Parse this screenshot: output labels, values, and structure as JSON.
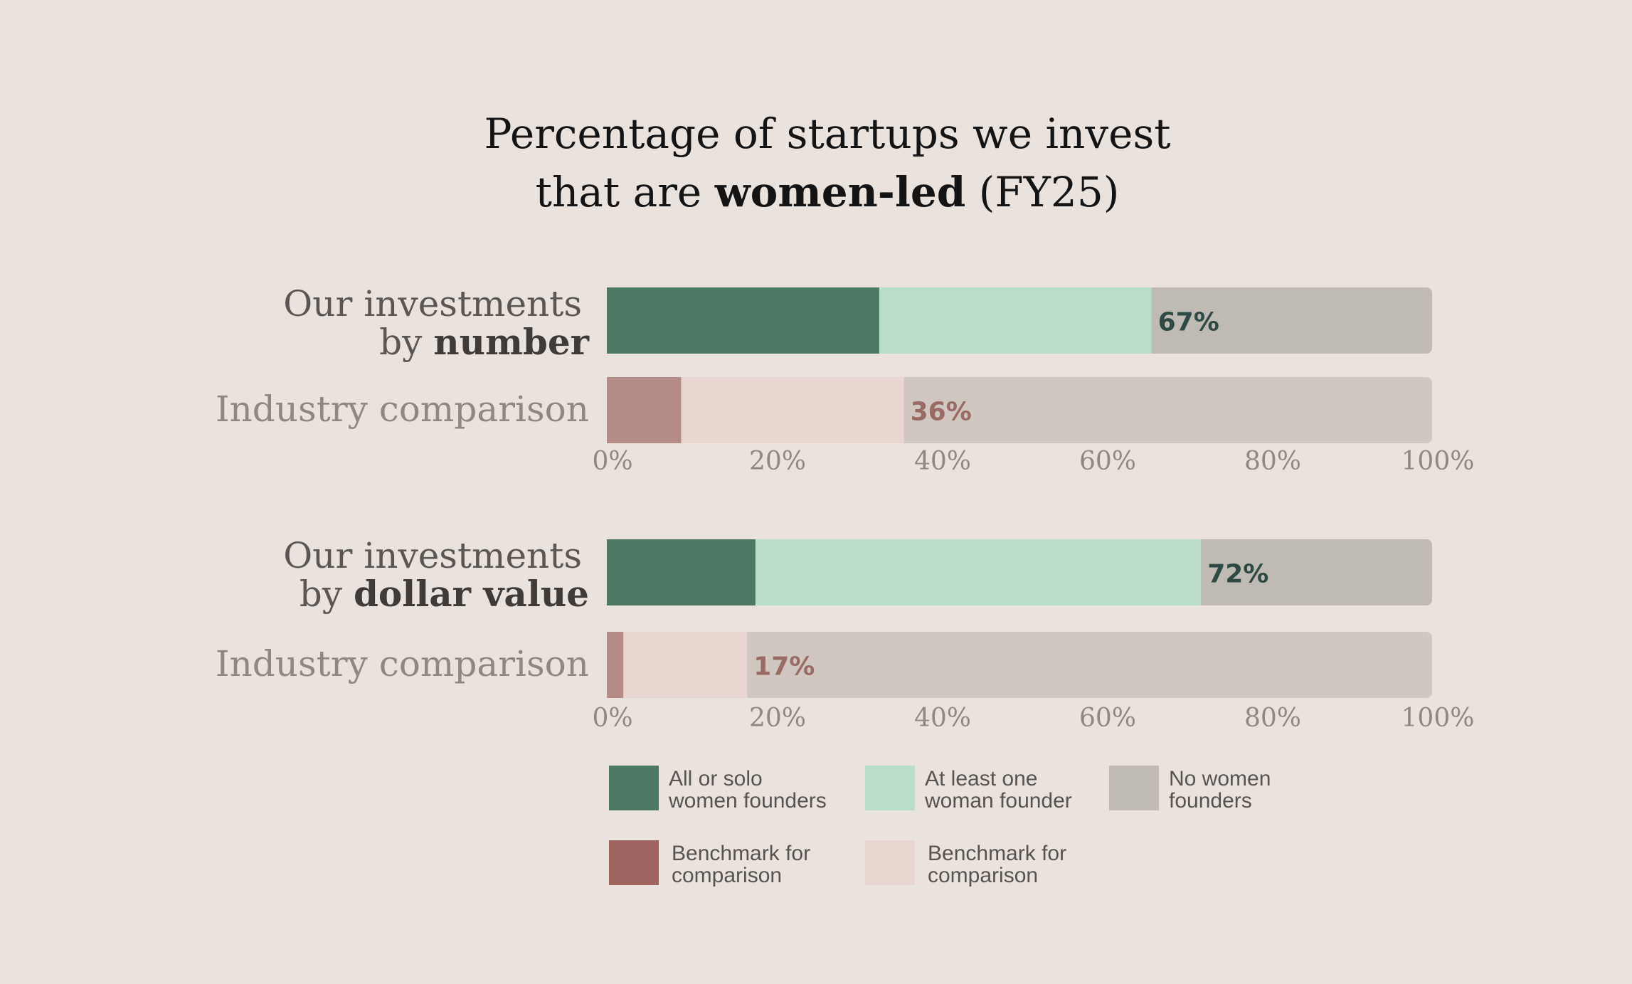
{
  "title": {
    "line1": "Percentage of startups we invest",
    "line2_pre": "that are ",
    "line2_bold": "women-led",
    "line2_post": " (FY25)"
  },
  "colors": {
    "ours_solo": "#4d7864",
    "ours_atleast": "#b9ddc9",
    "ours_none": "#bfbab4",
    "bench_solo": "#b58b88",
    "bench_atleast": "#ead6d1",
    "bench_none": "#d0c7c1",
    "ours_label": "#2e4a44",
    "bench_label": "#9a6a64",
    "legend_bench_solo": "#9f6360"
  },
  "chart_data": [
    {
      "type": "bar",
      "orientation": "horizontal",
      "stacked": true,
      "categories": [
        "Our investments by number",
        "Industry comparison"
      ],
      "category_labels": [
        {
          "pre": "Our investments",
          "line2_pre": "by ",
          "line2_bold": "number"
        },
        {
          "pre": "Industry comparison"
        }
      ],
      "series": [
        {
          "name": "All or solo women founders",
          "values": [
            33,
            9
          ]
        },
        {
          "name": "At least one woman founder",
          "values": [
            33,
            27
          ]
        },
        {
          "name": "No women founders",
          "values": [
            34,
            64
          ]
        }
      ],
      "data_labels": [
        "67%",
        "36%"
      ],
      "xlim": [
        0,
        100
      ],
      "xticks": [
        "0%",
        "20%",
        "40%",
        "60%",
        "80%",
        "100%"
      ]
    },
    {
      "type": "bar",
      "orientation": "horizontal",
      "stacked": true,
      "categories": [
        "Our investments by dollar value",
        "Industry comparison"
      ],
      "category_labels": [
        {
          "pre": "Our investments",
          "line2_pre": "by ",
          "line2_bold": "dollar value"
        },
        {
          "pre": "Industry comparison"
        }
      ],
      "series": [
        {
          "name": "All or solo women founders",
          "values": [
            18,
            2
          ]
        },
        {
          "name": "At least one woman founder",
          "values": [
            54,
            15
          ]
        },
        {
          "name": "No women founders",
          "values": [
            28,
            83
          ]
        }
      ],
      "data_labels": [
        "72%",
        "17%"
      ],
      "xlim": [
        0,
        100
      ],
      "xticks": [
        "0%",
        "20%",
        "40%",
        "60%",
        "80%",
        "100%"
      ]
    }
  ],
  "legend": [
    {
      "line1": "All or solo",
      "line2": "women founders",
      "color_key": "ours_solo"
    },
    {
      "line1": "At least one",
      "line2": "woman founder",
      "color_key": "ours_atleast"
    },
    {
      "line1": "No women",
      "line2": "founders",
      "color_key": "ours_none"
    },
    {
      "line1": "Benchmark for",
      "line2": "comparison",
      "color_key": "legend_bench_solo"
    },
    {
      "line1": "Benchmark for",
      "line2": "comparison",
      "color_key": "bench_atleast"
    }
  ]
}
